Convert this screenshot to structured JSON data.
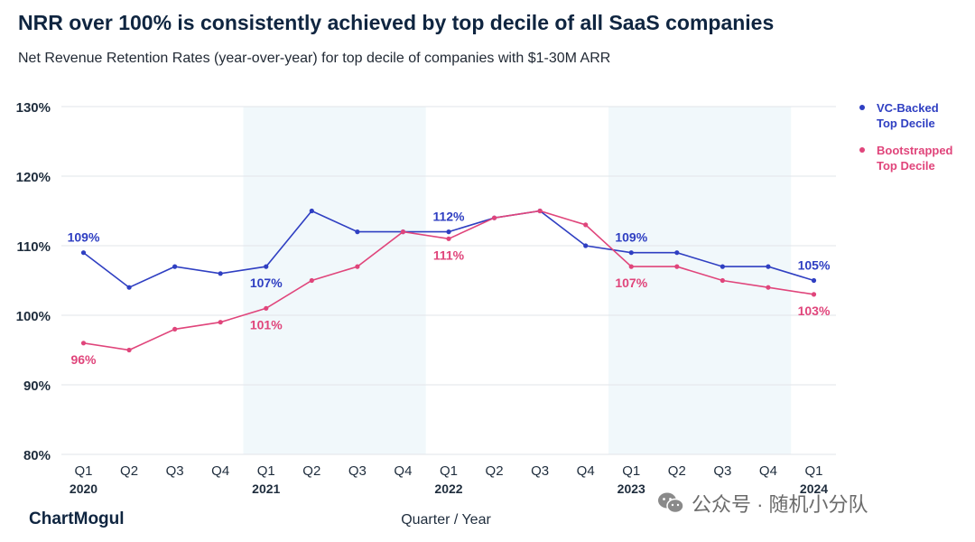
{
  "chart_data": {
    "type": "line",
    "title": "NRR over 100% is consistently achieved by top decile of all SaaS companies",
    "subtitle": "Net Revenue Retention Rates (year-over-year) for top decile of companies with $1-30M ARR",
    "xlabel": "Quarter / Year",
    "ylabel": "",
    "ylim": [
      80,
      130
    ],
    "y_ticks": [
      80,
      90,
      100,
      110,
      120,
      130
    ],
    "y_tick_labels": [
      "80%",
      "90%",
      "100%",
      "110%",
      "120%",
      "130%"
    ],
    "categories": [
      "Q1",
      "Q2",
      "Q3",
      "Q4",
      "Q1",
      "Q2",
      "Q3",
      "Q4",
      "Q1",
      "Q2",
      "Q3",
      "Q4",
      "Q1",
      "Q2",
      "Q3",
      "Q4",
      "Q1"
    ],
    "years": [
      {
        "index": 0,
        "label": "2020"
      },
      {
        "index": 4,
        "label": "2021"
      },
      {
        "index": 8,
        "label": "2022"
      },
      {
        "index": 12,
        "label": "2023"
      },
      {
        "index": 16,
        "label": "2024"
      }
    ],
    "grid": "horizontal",
    "legend_position": "right",
    "shaded_years": [
      "2021",
      "2023"
    ],
    "series": [
      {
        "name": "VC-Backed Top Decile",
        "color": "#2f3fc2",
        "values": [
          109,
          104,
          107,
          106,
          107,
          115,
          112,
          112,
          112,
          114,
          115,
          110,
          109,
          109,
          107,
          107,
          105
        ],
        "annotations": [
          {
            "index": 0,
            "label": "109%",
            "position": "above"
          },
          {
            "index": 4,
            "label": "107%",
            "position": "below"
          },
          {
            "index": 8,
            "label": "112%",
            "position": "above"
          },
          {
            "index": 12,
            "label": "109%",
            "position": "above"
          },
          {
            "index": 16,
            "label": "105%",
            "position": "above"
          }
        ]
      },
      {
        "name": "Bootstrapped Top Decile",
        "color": "#e0457b",
        "values": [
          96,
          95,
          98,
          99,
          101,
          105,
          107,
          112,
          111,
          114,
          115,
          113,
          107,
          107,
          105,
          104,
          103
        ],
        "annotations": [
          {
            "index": 0,
            "label": "96%",
            "position": "below"
          },
          {
            "index": 4,
            "label": "101%",
            "position": "below"
          },
          {
            "index": 8,
            "label": "111%",
            "position": "below"
          },
          {
            "index": 12,
            "label": "107%",
            "position": "below"
          },
          {
            "index": 16,
            "label": "103%",
            "position": "below"
          }
        ]
      }
    ],
    "legend": [
      {
        "line1": "VC-Backed",
        "line2": "Top Decile"
      },
      {
        "line1": "Bootstrapped",
        "line2": "Top Decile"
      }
    ]
  },
  "footer": {
    "brand": "ChartMogul",
    "watermark": "公众号 · 随机小分队",
    "watermark_icon": "wechat-icon"
  }
}
